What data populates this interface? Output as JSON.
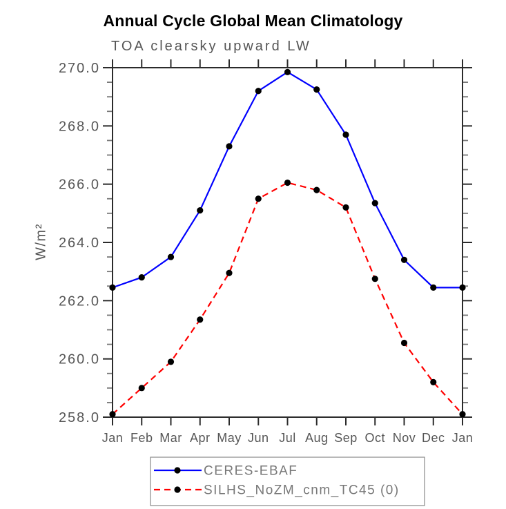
{
  "chart_data": {
    "type": "line",
    "title": "Annual Cycle Global Mean Climatology",
    "subtitle": "TOA clearsky upward LW",
    "ylabel": "W/m²",
    "xlabel": "",
    "x_tick_labels": [
      "Jan",
      "Feb",
      "Mar",
      "Apr",
      "May",
      "Jun",
      "Jul",
      "Aug",
      "Sep",
      "Oct",
      "Nov",
      "Dec",
      "Jan"
    ],
    "ylim": [
      258.0,
      270.0
    ],
    "y_major_ticks": [
      258.0,
      260.0,
      262.0,
      264.0,
      266.0,
      268.0,
      270.0
    ],
    "y_tick_labels": [
      "258.0",
      "260.0",
      "262.0",
      "264.0",
      "266.0",
      "268.0",
      "270.0"
    ],
    "y_minor_step": 0.5,
    "grid": false,
    "legend_position": "bottom",
    "axis_color": "#2b2b2b",
    "minor_tick_color": "#777777",
    "tick_text_color": "#565656",
    "legend_text_color": "#787878",
    "legend_border_color": "#888888",
    "marker_color": "#000000",
    "series": [
      {
        "name": "CERES-EBAF",
        "color": "#0000ff",
        "line_style": "solid",
        "marker": "filled-circle",
        "values": [
          262.45,
          262.8,
          263.5,
          265.1,
          267.3,
          269.2,
          269.85,
          269.25,
          267.7,
          265.35,
          263.4,
          262.45,
          262.45
        ]
      },
      {
        "name": "SILHS_NoZM_cnm_TC45 (0)",
        "color": "#ff0000",
        "line_style": "dashed",
        "marker": "filled-circle",
        "values": [
          258.1,
          259.0,
          259.9,
          261.35,
          262.95,
          265.5,
          266.05,
          265.8,
          265.2,
          262.75,
          260.55,
          259.2,
          258.1
        ]
      }
    ]
  }
}
